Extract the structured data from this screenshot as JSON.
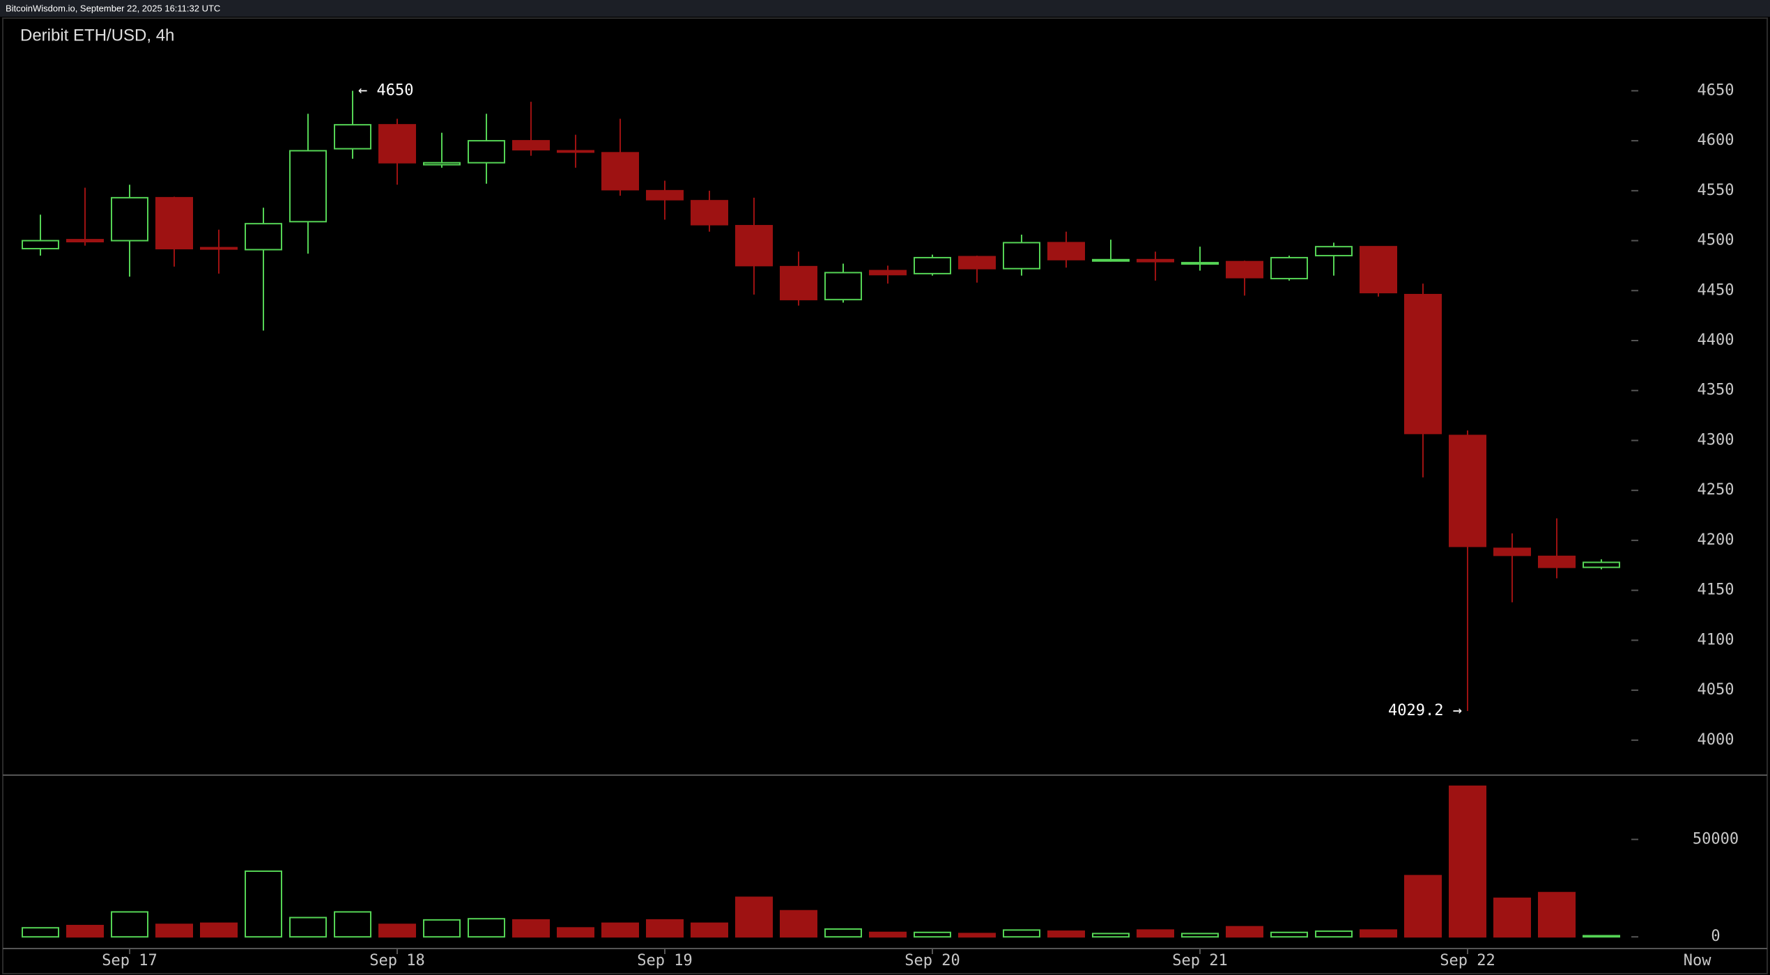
{
  "header": "BitcoinWisdom.io, September 22, 2025 16:11:32 UTC",
  "chart_data": [
    {
      "type": "candlestick",
      "title": "Deribit ETH/USD, 4h",
      "open": [
        4492,
        4501,
        4500,
        4543,
        4493,
        4491,
        4519,
        4592,
        4616,
        4576,
        4578,
        4600,
        4590,
        4588,
        4550,
        4540,
        4515,
        4474,
        4441,
        4470,
        4467,
        4484,
        4472,
        4498,
        4480,
        4481,
        4477,
        4479,
        4462,
        4485,
        4494,
        4446,
        4305,
        4192,
        4184,
        4173
      ],
      "high": [
        4526,
        4553,
        4556,
        4544,
        4511,
        4533,
        4627,
        4650,
        4622,
        4608,
        4627,
        4639,
        4606,
        4622,
        4560,
        4550,
        4543,
        4489,
        4477,
        4475,
        4486,
        4485,
        4506,
        4509,
        4501,
        4489,
        4494,
        4480,
        4485,
        4498,
        4494,
        4457,
        4310,
        4207,
        4222,
        4181
      ],
      "low": [
        4485,
        4495,
        4464,
        4474,
        4467,
        4410,
        4487,
        4582,
        4556,
        4573,
        4557,
        4585,
        4573,
        4545,
        4521,
        4509,
        4446,
        4435,
        4438,
        4457,
        4465,
        4458,
        4465,
        4473,
        4479,
        4460,
        4470,
        4445,
        4460,
        4465,
        4444,
        4263,
        4029.2,
        4138,
        4162,
        4171
      ],
      "close": [
        4500,
        4499,
        4543,
        4492,
        4492,
        4517,
        4590,
        4616,
        4578,
        4578,
        4600,
        4591,
        4589,
        4551,
        4541,
        4516,
        4475,
        4441,
        4468,
        4466,
        4483,
        4472,
        4498,
        4481,
        4481,
        4479,
        4478,
        4463,
        4483,
        4494,
        4448,
        4307,
        4194,
        4185,
        4173,
        4178
      ],
      "up_color": "#55d455",
      "down_color": "#9e1212",
      "ylim": [
        3965,
        4690
      ],
      "yticks": [
        4000,
        4050,
        4100,
        4150,
        4200,
        4250,
        4300,
        4350,
        4400,
        4450,
        4500,
        4550,
        4600,
        4650
      ],
      "annotations": [
        {
          "label": "← 4650"
        },
        {
          "label": "4029.2 →"
        }
      ]
    },
    {
      "type": "bar",
      "categories": [
        null,
        null,
        "Sep 17",
        null,
        null,
        null,
        null,
        null,
        "Sep 18",
        null,
        null,
        null,
        null,
        null,
        "Sep 19",
        null,
        null,
        null,
        null,
        null,
        "Sep 20",
        null,
        null,
        null,
        null,
        null,
        "Sep 21",
        null,
        null,
        null,
        null,
        null,
        "Sep 22",
        null,
        null,
        null
      ],
      "end_label": "Now",
      "values": [
        4650,
        5800,
        12800,
        6400,
        7000,
        33700,
        9900,
        12800,
        6400,
        8700,
        9300,
        8700,
        4600,
        7000,
        8700,
        7000,
        20300,
        13400,
        4000,
        2300,
        2300,
        1700,
        3500,
        2900,
        1700,
        3500,
        1700,
        5200,
        2300,
        2900,
        3500,
        31400,
        77300,
        19800,
        22700,
        600
      ],
      "ylim": [
        -6000,
        83000
      ],
      "yticks": [
        0,
        50000
      ]
    }
  ]
}
